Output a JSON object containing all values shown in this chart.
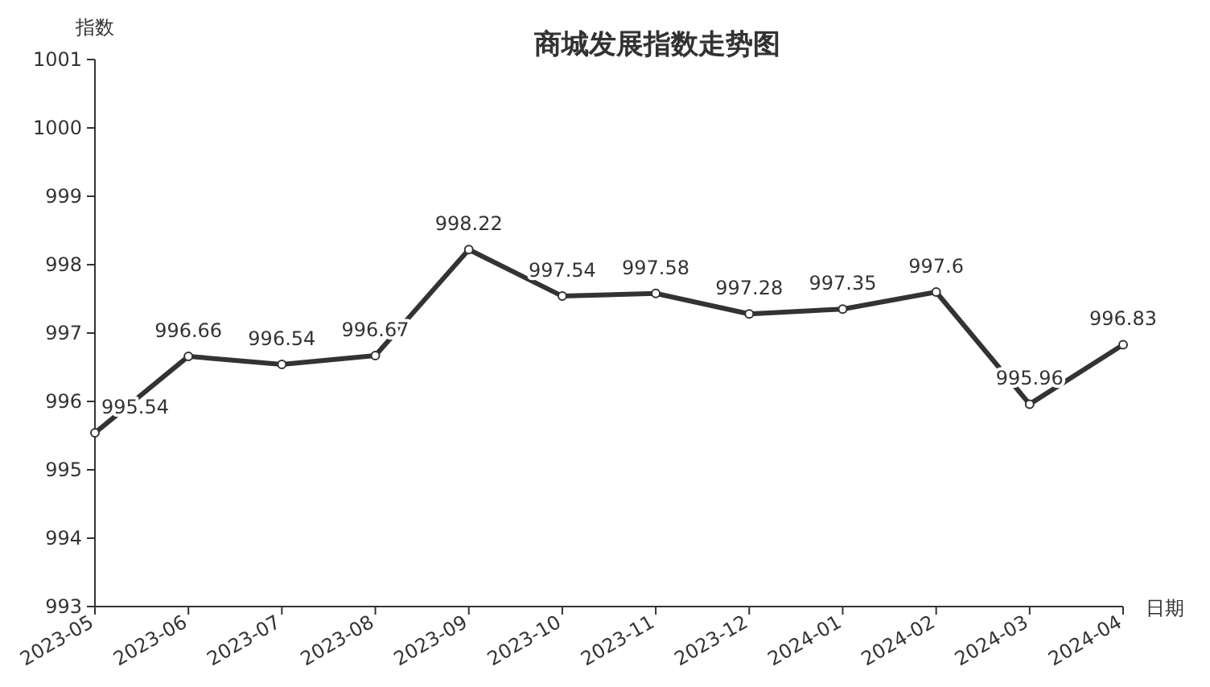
{
  "chart_data": {
    "type": "line",
    "title": "商城发展指数走势图",
    "xlabel": "日期",
    "ylabel": "指数",
    "categories": [
      "2023-05",
      "2023-06",
      "2023-07",
      "2023-08",
      "2023-09",
      "2023-10",
      "2023-11",
      "2023-12",
      "2024-01",
      "2024-02",
      "2024-03",
      "2024-04"
    ],
    "series": [
      {
        "color": "#333333",
        "values": [
          995.54,
          996.66,
          996.54,
          996.67,
          998.22,
          997.54,
          997.58,
          997.28,
          997.35,
          997.6,
          995.96,
          996.83
        ]
      }
    ],
    "ylim": [
      993,
      1001
    ],
    "yticks": [
      993,
      994,
      995,
      996,
      997,
      998,
      999,
      1000,
      1001
    ],
    "data_labels": true,
    "marker": "circle",
    "grid": false
  }
}
